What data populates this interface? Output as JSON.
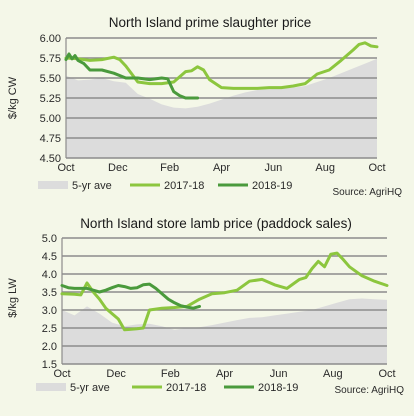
{
  "colors": {
    "background": "#f4f7e8",
    "area": "#dcdcdc",
    "grid": "#8c8c8c",
    "series_2017_18": "#8cc63e",
    "series_2018_19": "#4a9a3c"
  },
  "chart_data": [
    {
      "type": "line",
      "title": "North Island prime slaughter price",
      "ylabel": "$/kg CW",
      "source": "Source: AgriHQ",
      "yticks": [
        "4.50",
        "4.75",
        "5.00",
        "5.25",
        "5.50",
        "5.75",
        "6.00"
      ],
      "ylim": [
        4.5,
        6.0
      ],
      "xlim": [
        0,
        52
      ],
      "xtick_labels": [
        "Oct",
        "Dec",
        "Feb",
        "Apr",
        "Jun",
        "Aug",
        "Oct"
      ],
      "grid": true,
      "legend_position": "bottom",
      "series": [
        {
          "name": "5-yr ave",
          "style": "area",
          "x": [
            0,
            2,
            4,
            6,
            8,
            10,
            12,
            14,
            16,
            18,
            20,
            22,
            24,
            26,
            28,
            30,
            32,
            34,
            36,
            38,
            40,
            42,
            44,
            46,
            48,
            50,
            52
          ],
          "values": [
            5.53,
            5.47,
            5.48,
            5.5,
            5.46,
            5.44,
            5.3,
            5.24,
            5.17,
            5.13,
            5.12,
            5.14,
            5.18,
            5.23,
            5.28,
            5.32,
            5.35,
            5.36,
            5.37,
            5.38,
            5.4,
            5.45,
            5.5,
            5.56,
            5.62,
            5.68,
            5.74
          ]
        },
        {
          "name": "2017-18",
          "x": [
            0,
            2,
            4,
            6,
            8,
            9,
            10,
            12,
            14,
            16,
            18,
            20,
            21,
            22,
            23,
            24,
            26,
            28,
            30,
            32,
            34,
            36,
            38,
            40,
            42,
            44,
            46,
            48,
            49,
            50,
            51,
            52
          ],
          "values": [
            5.75,
            5.74,
            5.72,
            5.73,
            5.76,
            5.73,
            5.65,
            5.45,
            5.43,
            5.43,
            5.45,
            5.58,
            5.59,
            5.64,
            5.6,
            5.48,
            5.38,
            5.37,
            5.37,
            5.37,
            5.38,
            5.38,
            5.4,
            5.43,
            5.55,
            5.6,
            5.72,
            5.85,
            5.92,
            5.94,
            5.9,
            5.89
          ]
        },
        {
          "name": "2018-19",
          "x": [
            0,
            0.5,
            1,
            1.5,
            2,
            3,
            4,
            6,
            8,
            10,
            12,
            14,
            16,
            17,
            18,
            19,
            20,
            21,
            22
          ],
          "values": [
            5.73,
            5.8,
            5.74,
            5.78,
            5.72,
            5.68,
            5.6,
            5.6,
            5.56,
            5.5,
            5.5,
            5.48,
            5.5,
            5.49,
            5.33,
            5.28,
            5.25,
            5.25,
            5.25
          ]
        }
      ]
    },
    {
      "type": "line",
      "title": "North Island store lamb price (paddock sales)",
      "ylabel": "$/kg LW",
      "source": "Source: AgriHQ",
      "yticks": [
        "1.5",
        "2.0",
        "2.5",
        "3.0",
        "3.5",
        "4.0",
        "4.5",
        "5.0"
      ],
      "ylim": [
        1.5,
        5.0
      ],
      "xlim": [
        0,
        52
      ],
      "xtick_labels": [
        "Oct",
        "Dec",
        "Feb",
        "Apr",
        "Jun",
        "Aug",
        "Oct"
      ],
      "grid": true,
      "legend_position": "bottom",
      "series": [
        {
          "name": "5-yr ave",
          "style": "area",
          "x": [
            0,
            2,
            4,
            6,
            8,
            10,
            12,
            14,
            16,
            18,
            20,
            22,
            24,
            26,
            28,
            30,
            32,
            34,
            36,
            38,
            40,
            42,
            44,
            46,
            48,
            50,
            52
          ],
          "values": [
            3.0,
            2.85,
            3.1,
            2.9,
            2.65,
            2.55,
            2.6,
            2.62,
            2.55,
            2.45,
            2.5,
            2.52,
            2.58,
            2.65,
            2.72,
            2.78,
            2.8,
            2.85,
            2.9,
            2.95,
            3.0,
            3.1,
            3.2,
            3.3,
            3.32,
            3.3,
            3.28
          ]
        },
        {
          "name": "2017-18",
          "x": [
            0,
            2,
            3,
            4,
            5,
            6,
            7,
            8,
            9,
            10,
            12,
            13,
            14,
            16,
            18,
            20,
            22,
            24,
            26,
            28,
            30,
            32,
            34,
            36,
            38,
            39,
            40,
            41,
            42,
            43,
            44,
            45,
            46,
            48,
            50,
            52
          ],
          "values": [
            3.45,
            3.44,
            3.42,
            3.75,
            3.5,
            3.3,
            3.05,
            2.9,
            2.75,
            2.45,
            2.48,
            2.5,
            3.0,
            3.05,
            3.07,
            3.1,
            3.3,
            3.45,
            3.48,
            3.55,
            3.8,
            3.85,
            3.7,
            3.6,
            3.85,
            3.9,
            4.15,
            4.35,
            4.2,
            4.55,
            4.58,
            4.4,
            4.2,
            3.95,
            3.8,
            3.68
          ]
        },
        {
          "name": "2018-19",
          "x": [
            0,
            1,
            2,
            3,
            4,
            5,
            6,
            7,
            8,
            9,
            10,
            11,
            12,
            13,
            14,
            15,
            16,
            17,
            18,
            19,
            20,
            21,
            22
          ],
          "values": [
            3.68,
            3.62,
            3.6,
            3.6,
            3.6,
            3.55,
            3.5,
            3.55,
            3.62,
            3.68,
            3.65,
            3.6,
            3.62,
            3.7,
            3.72,
            3.6,
            3.45,
            3.3,
            3.2,
            3.12,
            3.08,
            3.05,
            3.1
          ]
        }
      ]
    }
  ]
}
